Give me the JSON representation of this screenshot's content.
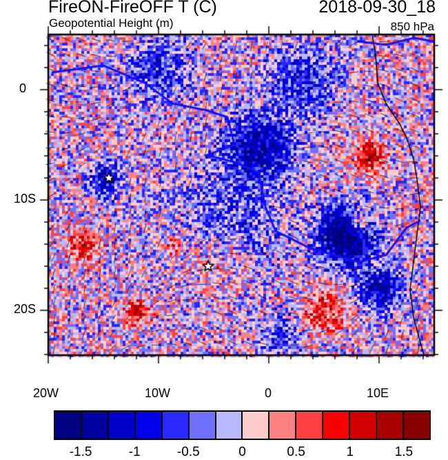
{
  "header": {
    "title": "FireON-FireOFF T (C)",
    "date": "2018-09-30_18",
    "subtitle": "Geopotential Height (m)",
    "level": "850 hPa"
  },
  "map": {
    "lon_range": [
      -20,
      15
    ],
    "lat_range": [
      -24,
      5
    ],
    "lat_labels": [
      {
        "lat": 0,
        "label": "0"
      },
      {
        "lat": -10,
        "label": "10S"
      },
      {
        "lat": -20,
        "label": "20S"
      }
    ],
    "lon_labels": [
      {
        "lon": -20,
        "label": "20W"
      },
      {
        "lon": -10,
        "label": "10W"
      },
      {
        "lon": 0,
        "label": "0"
      },
      {
        "lon": 10,
        "label": "10E"
      }
    ],
    "markers": [
      {
        "lon": -14.5,
        "lat": -8,
        "symbol": "star"
      },
      {
        "lon": -5.5,
        "lat": -16,
        "symbol": "star"
      }
    ]
  },
  "chart_data": {
    "type": "heatmap",
    "title": "FireON-FireOFF T (C)",
    "colorbar": {
      "levels": [
        -1.5,
        -1.25,
        -1,
        -0.75,
        -0.5,
        -0.25,
        0,
        0.25,
        0.5,
        0.75,
        1,
        1.25,
        1.5
      ],
      "colors": [
        "#000080",
        "#0000a0",
        "#0000c8",
        "#0000ea",
        "#2828ff",
        "#7070ff",
        "#b8b8ff",
        "#ffcccc",
        "#ff8080",
        "#ff4040",
        "#f80000",
        "#d00000",
        "#a80000",
        "#880000"
      ],
      "labels": [
        {
          "value": -1.5,
          "label": "-1.5"
        },
        {
          "value": -1,
          "label": "-1"
        },
        {
          "value": -0.5,
          "label": "-0.5"
        },
        {
          "value": 0,
          "label": "0"
        },
        {
          "value": 0.5,
          "label": "0.5"
        },
        {
          "value": 1,
          "label": "1"
        },
        {
          "value": 1.5,
          "label": "1.5"
        }
      ]
    }
  }
}
